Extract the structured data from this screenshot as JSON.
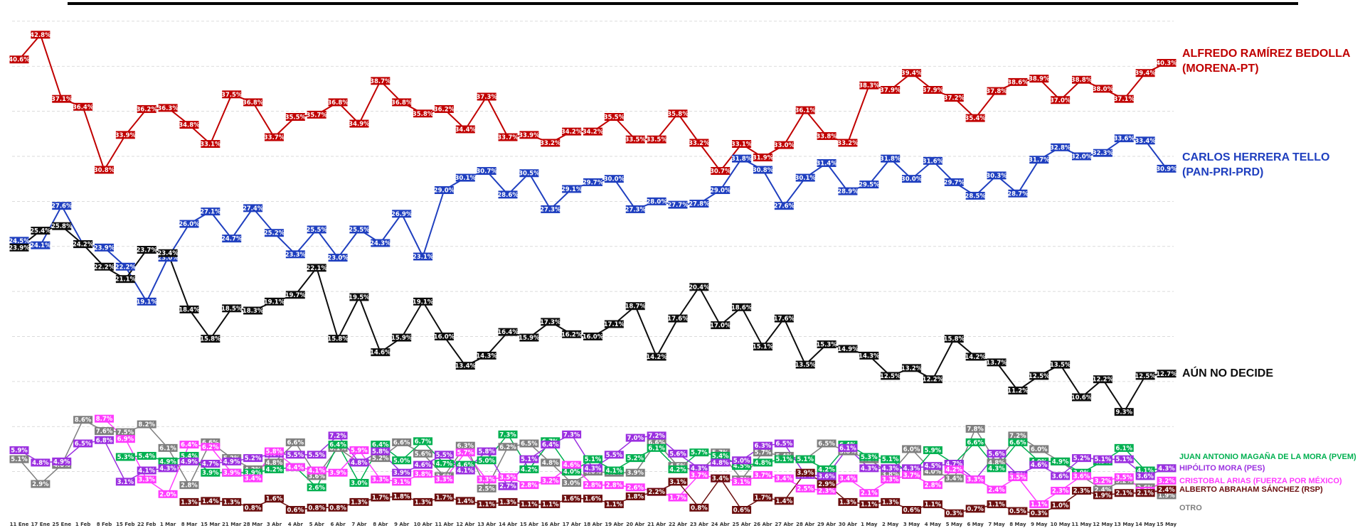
{
  "chart_data": {
    "type": "line",
    "x": [
      "11 Ene",
      "17 Ene",
      "25 Ene",
      "1 Feb",
      "8 Feb",
      "15 Feb",
      "22 Feb",
      "1 Mar",
      "8 Mar",
      "15 Mar",
      "21 Mar",
      "28 Mar",
      "3 Abr",
      "4 Abr",
      "5 Abr",
      "6 Abr",
      "7 Abr",
      "8 Abr",
      "9 Abr",
      "10 Abr",
      "11 Abr",
      "12 Abr",
      "13 Abr",
      "14 Abr",
      "15 Abr",
      "16 Abr",
      "17 Abr",
      "18 Abr",
      "19 Abr",
      "20 Abr",
      "21 Abr",
      "22 Abr",
      "23 Abr",
      "24 Abr",
      "25 Abr",
      "26 Abr",
      "27 Abr",
      "28 Abr",
      "29 Abr",
      "30 Abr",
      "1 May",
      "2 May",
      "3 May",
      "4 May",
      "5 May",
      "6 May",
      "7 May",
      "8 May",
      "9 May",
      "10 May",
      "11 May",
      "12 May",
      "13 May",
      "14 May",
      "15 May"
    ],
    "ylim": [
      0,
      45
    ],
    "grid": true,
    "series": [
      {
        "name": "ALFREDO RAMÍREZ BEDOLLA\n(MORENA-PT)",
        "color": "#c00000",
        "size": "big",
        "values": [
          40.6,
          42.8,
          37.1,
          36.4,
          30.8,
          33.9,
          36.2,
          36.3,
          34.8,
          33.1,
          37.5,
          36.8,
          33.7,
          35.5,
          35.7,
          36.8,
          34.9,
          38.7,
          36.8,
          35.8,
          36.2,
          34.4,
          37.3,
          33.7,
          33.9,
          33.2,
          34.2,
          34.2,
          35.5,
          33.5,
          33.5,
          35.8,
          33.2,
          30.7,
          33.1,
          31.9,
          33.0,
          36.1,
          33.8,
          33.2,
          38.3,
          37.9,
          39.4,
          37.9,
          37.2,
          35.4,
          37.8,
          38.6,
          38.9,
          37.0,
          38.8,
          38.0,
          37.1,
          39.4,
          40.3
        ]
      },
      {
        "name": "CARLOS HERRERA TELLO\n(PAN-PRI-PRD)",
        "color": "#1f3fbf",
        "size": "big",
        "values": [
          24.5,
          24.1,
          27.6,
          24.2,
          23.9,
          22.2,
          19.1,
          23.0,
          26.0,
          27.1,
          24.7,
          27.4,
          25.2,
          23.3,
          25.5,
          23.0,
          25.5,
          24.3,
          26.9,
          23.1,
          29.0,
          30.1,
          30.7,
          28.6,
          30.5,
          27.3,
          29.1,
          29.7,
          30.0,
          27.3,
          28.0,
          27.7,
          27.8,
          29.0,
          31.8,
          30.8,
          27.6,
          30.1,
          31.4,
          28.9,
          29.5,
          31.8,
          30.0,
          31.6,
          29.7,
          28.5,
          30.3,
          28.7,
          31.7,
          32.8,
          32.0,
          32.3,
          33.6,
          33.4,
          30.9
        ]
      },
      {
        "name": "AÚN NO DECIDE",
        "color": "#0d0d0d",
        "size": "big",
        "values": [
          23.9,
          25.4,
          25.8,
          24.2,
          22.2,
          21.1,
          23.7,
          23.4,
          18.4,
          15.8,
          18.5,
          18.3,
          19.1,
          19.7,
          22.1,
          15.8,
          19.5,
          14.6,
          15.9,
          19.1,
          16.0,
          13.4,
          14.3,
          16.4,
          15.9,
          17.3,
          16.2,
          16.0,
          17.1,
          18.7,
          14.2,
          17.6,
          20.4,
          17.0,
          18.6,
          15.1,
          17.6,
          13.5,
          15.3,
          14.9,
          14.3,
          12.5,
          13.2,
          12.2,
          15.8,
          14.2,
          13.7,
          11.2,
          12.5,
          13.5,
          10.6,
          12.2,
          9.3,
          12.5,
          12.7
        ]
      },
      {
        "name": "OTRO",
        "color": "#7f7f7f",
        "size": "small",
        "values": [
          5.1,
          2.9,
          4.6,
          8.6,
          7.6,
          7.5,
          8.2,
          6.1,
          2.8,
          6.6,
          5.2,
          4.2,
          4.8,
          6.6,
          3.6,
          6.1,
          4.8,
          5.2,
          6.6,
          5.6,
          3.6,
          6.3,
          2.5,
          6.2,
          6.5,
          4.8,
          3.0,
          4.0,
          3.9,
          3.9,
          6.6,
          4.5,
          4.0,
          5.7,
          3.3,
          5.7,
          5.4,
          5.1,
          6.5,
          5.8,
          5.1,
          3.8,
          6.0,
          4.0,
          3.4,
          7.8,
          4.8,
          7.2,
          6.0,
          4.9,
          3.6,
          2.4,
          3.2,
          2.6,
          1.9
        ]
      },
      {
        "name": "JUAN ANTONIO MAGAÑA DE LA MORA (PVEM)",
        "color": "#00b050",
        "size": "small",
        "values": [
          null,
          null,
          null,
          null,
          null,
          5.3,
          5.4,
          4.9,
          5.4,
          3.9,
          3.9,
          3.9,
          4.2,
          4.4,
          2.6,
          6.4,
          3.0,
          6.4,
          5.0,
          6.7,
          4.7,
          4.6,
          5.0,
          7.3,
          4.2,
          6.7,
          4.0,
          5.1,
          4.1,
          5.2,
          6.1,
          4.2,
          5.7,
          5.4,
          4.5,
          4.8,
          5.1,
          5.1,
          4.2,
          6.4,
          5.3,
          5.1,
          3.7,
          5.9,
          4.7,
          6.6,
          4.3,
          6.6,
          4.9,
          4.9,
          3.9,
          4.9,
          6.1,
          4.1,
          4.3
        ]
      },
      {
        "name": "HIPÓLITO MORA (PES)",
        "color": "#9b30e0",
        "size": "small",
        "values": [
          5.9,
          4.8,
          4.9,
          6.5,
          6.8,
          3.1,
          4.1,
          4.3,
          4.9,
          4.7,
          4.9,
          5.2,
          5.6,
          5.5,
          5.5,
          7.2,
          4.8,
          5.8,
          3.9,
          4.6,
          5.5,
          4.1,
          5.8,
          2.7,
          5.1,
          6.4,
          7.3,
          4.3,
          5.5,
          7.0,
          7.2,
          5.6,
          4.3,
          4.8,
          5.0,
          6.3,
          6.5,
          3.7,
          3.6,
          6.1,
          4.3,
          4.3,
          4.3,
          4.5,
          4.7,
          3.3,
          5.6,
          3.7,
          4.6,
          3.6,
          5.2,
          5.1,
          5.1,
          3.6,
          4.3
        ]
      },
      {
        "name": "CRISTOBAL ARIAS (FUERZA POR MÉXICO)",
        "color": "#ff3cff",
        "size": "small",
        "values": [
          null,
          null,
          null,
          null,
          8.7,
          6.9,
          3.3,
          2.0,
          6.4,
          6.2,
          3.9,
          3.4,
          5.8,
          4.4,
          4.1,
          3.9,
          5.9,
          3.3,
          3.1,
          3.8,
          3.3,
          5.7,
          3.3,
          3.5,
          2.8,
          3.2,
          4.6,
          2.8,
          2.8,
          2.6,
          2.2,
          1.7,
          3.7,
          3.4,
          3.1,
          3.7,
          3.4,
          2.5,
          2.3,
          3.4,
          2.1,
          3.3,
          3.7,
          2.8,
          4.2,
          3.3,
          2.4,
          3.5,
          1.1,
          2.3,
          3.6,
          3.2,
          3.5,
          2.3,
          3.2
        ]
      },
      {
        "name": "ALBERTO ABRAHAM SÁNCHEZ (RSP)",
        "color": "#6b0f0f",
        "size": "small",
        "values": [
          null,
          null,
          null,
          null,
          null,
          null,
          null,
          null,
          1.3,
          1.4,
          1.3,
          0.8,
          1.6,
          0.6,
          0.8,
          0.8,
          1.3,
          1.7,
          1.8,
          1.3,
          1.7,
          1.4,
          1.1,
          1.3,
          1.1,
          1.1,
          1.6,
          1.6,
          1.1,
          1.8,
          2.2,
          3.1,
          0.8,
          3.4,
          0.6,
          1.7,
          1.4,
          3.9,
          2.9,
          1.3,
          1.1,
          1.3,
          0.6,
          1.1,
          0.3,
          0.7,
          1.1,
          0.5,
          0.3,
          1.0,
          2.3,
          1.9,
          2.1,
          2.1,
          2.4
        ]
      }
    ]
  }
}
